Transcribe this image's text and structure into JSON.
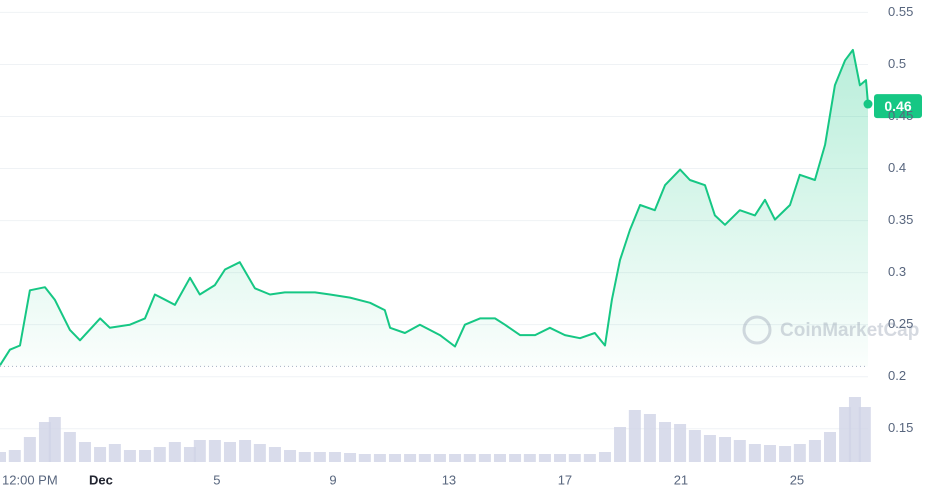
{
  "chart_data": [
    {
      "type": "line",
      "color": "#16c784",
      "watermark": "CoinMarketCap",
      "current_price": 0.46,
      "reference_line": 0.21,
      "x": [
        -2.48,
        -2.14,
        -1.79,
        -1.45,
        -0.93,
        -0.59,
        -0.07,
        0.28,
        0.97,
        1.31,
        2.0,
        2.52,
        2.86,
        3.21,
        3.55,
        4.07,
        4.41,
        4.93,
        5.28,
        5.79,
        6.31,
        6.83,
        7.34,
        7.86,
        8.38,
        8.9,
        9.59,
        10.28,
        10.79,
        10.97,
        11.48,
        12.0,
        12.69,
        13.21,
        13.55,
        14.07,
        14.59,
        14.93,
        15.45,
        15.97,
        16.48,
        17.0,
        17.52,
        18.03,
        18.38,
        18.62,
        18.9,
        19.24,
        19.59,
        20.1,
        20.45,
        20.97,
        21.31,
        21.83,
        22.17,
        22.52,
        23.03,
        23.55,
        23.9,
        24.24,
        24.76,
        25.1,
        25.62,
        25.97,
        26.31,
        26.66,
        26.93,
        27.17,
        27.38,
        27.45
      ],
      "values": [
        0.211,
        0.226,
        0.23,
        0.283,
        0.286,
        0.274,
        0.245,
        0.235,
        0.256,
        0.247,
        0.25,
        0.256,
        0.279,
        0.274,
        0.269,
        0.295,
        0.279,
        0.288,
        0.303,
        0.31,
        0.285,
        0.279,
        0.281,
        0.281,
        0.281,
        0.279,
        0.276,
        0.271,
        0.264,
        0.247,
        0.242,
        0.25,
        0.24,
        0.229,
        0.25,
        0.256,
        0.256,
        0.25,
        0.24,
        0.24,
        0.247,
        0.24,
        0.237,
        0.242,
        0.23,
        0.274,
        0.312,
        0.341,
        0.365,
        0.36,
        0.384,
        0.399,
        0.389,
        0.384,
        0.355,
        0.346,
        0.36,
        0.355,
        0.37,
        0.351,
        0.365,
        0.394,
        0.389,
        0.423,
        0.48,
        0.504,
        0.514,
        0.48,
        0.485,
        0.462
      ],
      "xlim": [
        -2.48,
        27.45
      ],
      "xticks": [
        {
          "value": -1.45,
          "label": "12:00 PM"
        },
        {
          "value": 1,
          "label": "Dec"
        },
        5,
        9,
        13,
        17,
        21,
        25
      ],
      "ylim": [
        0.12,
        0.56
      ],
      "yticks": [
        0.15,
        0.2,
        0.25,
        0.3,
        0.35,
        0.4,
        0.45,
        0.5,
        0.55
      ],
      "grid": true
    },
    {
      "type": "bar",
      "color": "#cfd3e6",
      "x": [
        -2.48,
        -1.97,
        -1.45,
        -0.93,
        -0.59,
        -0.07,
        0.45,
        0.97,
        1.48,
        2.0,
        2.52,
        3.03,
        3.55,
        4.07,
        4.41,
        4.93,
        5.45,
        5.97,
        6.48,
        7.0,
        7.52,
        8.03,
        8.55,
        9.07,
        9.59,
        10.1,
        10.62,
        11.14,
        11.66,
        12.17,
        12.69,
        13.21,
        13.72,
        14.24,
        14.76,
        15.28,
        15.79,
        16.31,
        16.83,
        17.34,
        17.86,
        18.38,
        18.9,
        19.41,
        19.93,
        20.45,
        20.97,
        21.48,
        22.0,
        22.52,
        23.03,
        23.55,
        24.07,
        24.59,
        25.1,
        25.62,
        26.14,
        26.66,
        27.0,
        27.34
      ],
      "values": [
        10,
        12,
        25,
        40,
        45,
        30,
        20,
        15,
        18,
        12,
        12,
        15,
        20,
        15,
        22,
        22,
        20,
        22,
        18,
        15,
        12,
        10,
        10,
        10,
        9,
        8,
        8,
        8,
        8,
        8,
        8,
        8,
        8,
        8,
        8,
        8,
        8,
        8,
        8,
        8,
        8,
        10,
        35,
        52,
        48,
        40,
        38,
        32,
        27,
        25,
        22,
        18,
        17,
        16,
        18,
        22,
        30,
        55,
        65,
        55
      ],
      "y2lim": [
        0,
        100
      ]
    }
  ]
}
